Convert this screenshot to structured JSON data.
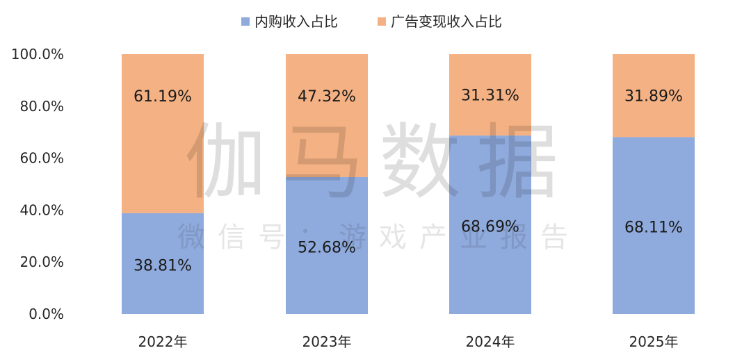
{
  "watermark": {
    "main": "伽马数据",
    "sub": "微信号：游戏产业报告"
  },
  "chart_data": {
    "type": "bar",
    "stacked": true,
    "categories": [
      "2022年",
      "2023年",
      "2024年",
      "2025年"
    ],
    "series": [
      {
        "name": "内购收入占比",
        "values": [
          38.81,
          52.68,
          68.69,
          68.11
        ],
        "labels": [
          "38.81%",
          "52.68%",
          "68.69%",
          "68.11%"
        ],
        "color": "#8FAADC"
      },
      {
        "name": "广告变现收入占比",
        "values": [
          61.19,
          47.32,
          31.31,
          31.89
        ],
        "labels": [
          "61.19%",
          "47.32%",
          "31.31%",
          "31.89%"
        ],
        "color": "#F4B183"
      }
    ],
    "y_ticks": [
      "0.0%",
      "20.0%",
      "40.0%",
      "60.0%",
      "80.0%",
      "100.0%"
    ],
    "ylim": [
      0,
      100
    ],
    "grid": false,
    "legend_position": "top"
  }
}
